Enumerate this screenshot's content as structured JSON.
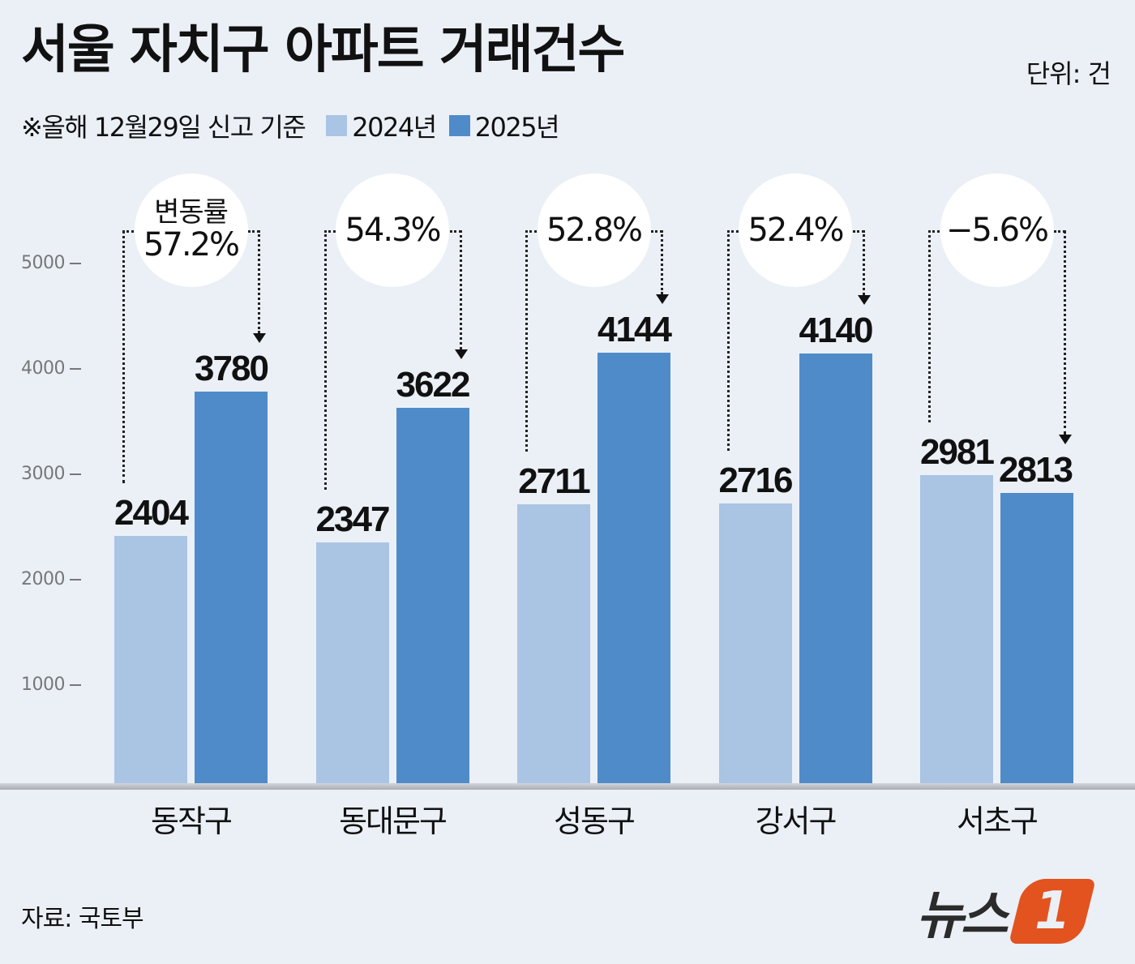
{
  "header": {
    "title": "서울 자치구 아파트 거래건수",
    "unit": "단위: 건",
    "note": "※올해 12월29일 신고 기준"
  },
  "legend": [
    {
      "label": "2024년",
      "color": "#aac4e4"
    },
    {
      "label": "2025년",
      "color": "#4f8bc9"
    }
  ],
  "yaxis": {
    "ticks": [
      "5000",
      "4000",
      "3000",
      "2000",
      "1000"
    ]
  },
  "change_label": "변동률",
  "groups": [
    {
      "name": "동작구",
      "v2024": "2404",
      "v2025": "3780",
      "change": "57.2%"
    },
    {
      "name": "동대문구",
      "v2024": "2347",
      "v2025": "3622",
      "change": "54.3%"
    },
    {
      "name": "성동구",
      "v2024": "2711",
      "v2025": "4144",
      "change": "52.8%"
    },
    {
      "name": "강서구",
      "v2024": "2716",
      "v2025": "4140",
      "change": "52.4%"
    },
    {
      "name": "서초구",
      "v2024": "2981",
      "v2025": "2813",
      "change": "−5.6%"
    }
  ],
  "footer": {
    "source": "자료: 국토부",
    "logo_text": "뉴스",
    "logo_badge": "1"
  },
  "chart_data": {
    "type": "bar",
    "title": "서울 자치구 아파트 거래건수",
    "subtitle": "※올해 12월29일 신고 기준",
    "unit": "단위: 건",
    "categories": [
      "동작구",
      "동대문구",
      "성동구",
      "강서구",
      "서초구"
    ],
    "series": [
      {
        "name": "2024년",
        "color": "#aac4e4",
        "values": [
          2404,
          2347,
          2711,
          2716,
          2981
        ]
      },
      {
        "name": "2025년",
        "color": "#4f8bc9",
        "values": [
          3780,
          3622,
          4144,
          4140,
          2813
        ]
      }
    ],
    "annotations": {
      "변동률": [
        "57.2%",
        "54.3%",
        "52.8%",
        "52.4%",
        "-5.6%"
      ]
    },
    "xlabel": "",
    "ylabel": "",
    "ylim": [
      0,
      5000
    ],
    "yticks": [
      1000,
      2000,
      3000,
      4000,
      5000
    ],
    "grid": false,
    "legend_position": "top-left",
    "source": "자료: 국토부"
  }
}
